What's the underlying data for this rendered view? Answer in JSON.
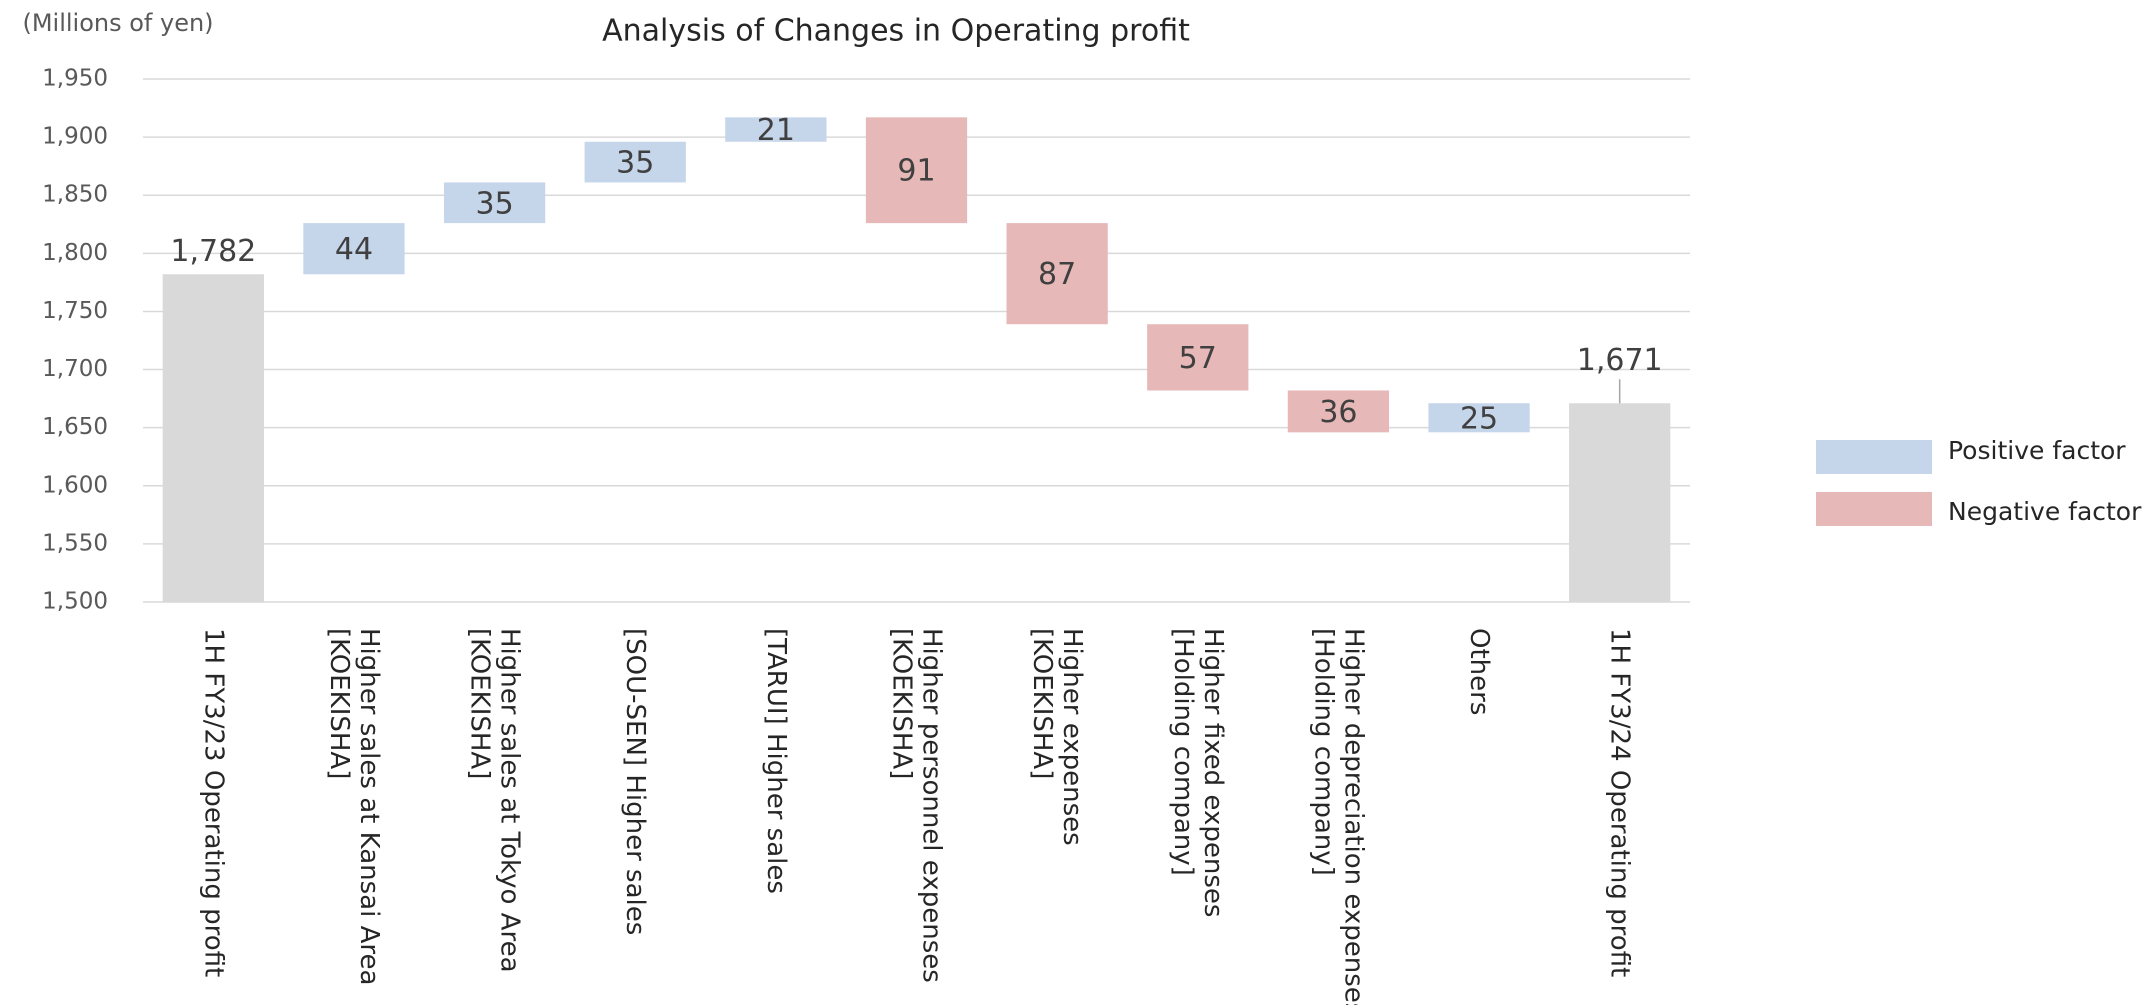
{
  "chart_data": {
    "type": "waterfall",
    "title": "Analysis of Changes in Operating profit",
    "unit_label": "(Millions of yen)",
    "totals": {
      "categories": [
        "1H FY3/23 Operating profit",
        "1H FY3/24 Operating profit"
      ],
      "values": [
        1782,
        1671
      ],
      "value_labels": [
        "1,782",
        "1,671"
      ],
      "color": "#d9d9d9"
    },
    "steps": {
      "categories": [
        "[KOEKISHA]\nHigher sales at Kansai Area",
        "[KOEKISHA]\nHigher sales at Tokyo Area",
        "[SOU-SEN] Higher sales",
        "[TARUI] Higher sales",
        "[KOEKISHA]\nHigher personnel expenses",
        "[KOEKISHA]\nHigher expenses",
        "[Holding company]\nHigher fixed expenses",
        "[Holding company]\nHigher depreciation expenses",
        "Others"
      ],
      "values": [
        44,
        35,
        35,
        21,
        -91,
        -87,
        -57,
        -36,
        25
      ],
      "value_labels": [
        "44",
        "35",
        "35",
        "21",
        "91",
        "87",
        "57",
        "36",
        "25"
      ]
    },
    "series": [
      {
        "name": "Positive factor",
        "color": "#c5d5ea"
      },
      {
        "name": "Negative factor",
        "color": "#e6b8b7"
      }
    ],
    "ylim": [
      1500,
      1950
    ],
    "yticks": [
      {
        "value": 1500,
        "label": "1,500"
      },
      {
        "value": 1550,
        "label": "1,550"
      },
      {
        "value": 1600,
        "label": "1,600"
      },
      {
        "value": 1650,
        "label": "1,650"
      },
      {
        "value": 1700,
        "label": "1,700"
      },
      {
        "value": 1750,
        "label": "1,750"
      },
      {
        "value": 1800,
        "label": "1,800"
      },
      {
        "value": 1850,
        "label": "1,850"
      },
      {
        "value": 1900,
        "label": "1,900"
      },
      {
        "value": 1950,
        "label": "1,950"
      }
    ],
    "grid": true
  }
}
